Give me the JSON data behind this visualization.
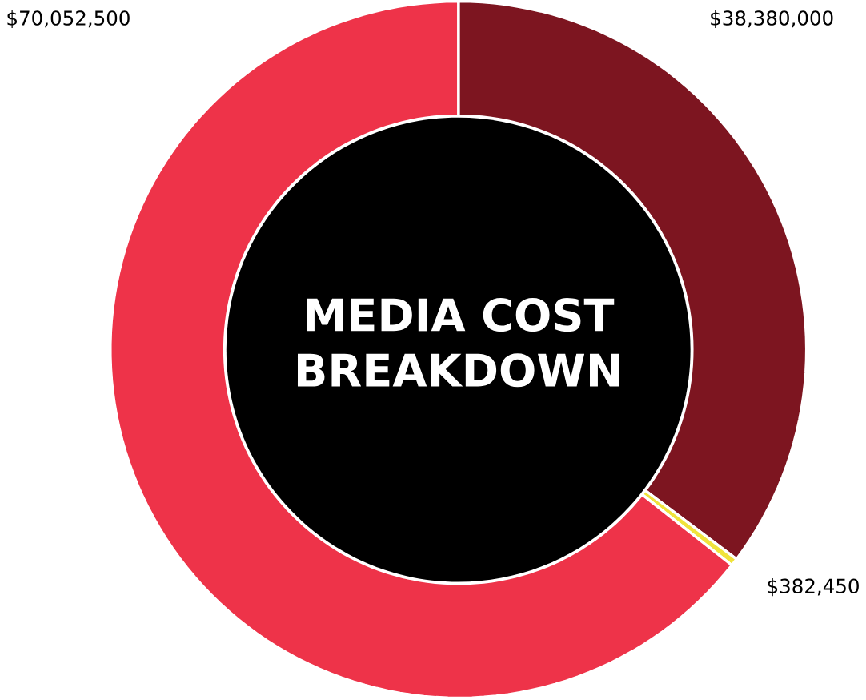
{
  "chart_data": {
    "type": "donut",
    "title": "MEDIA COST BREAKDOWN",
    "categories": [
      null,
      null,
      null
    ],
    "values": [
      38380000,
      382450,
      70052500
    ],
    "value_labels": [
      "$38,380,000",
      "$382,450",
      "$70,052,500"
    ],
    "colors": [
      "#7d1520",
      "#f0e33c",
      "#ee3349"
    ]
  }
}
